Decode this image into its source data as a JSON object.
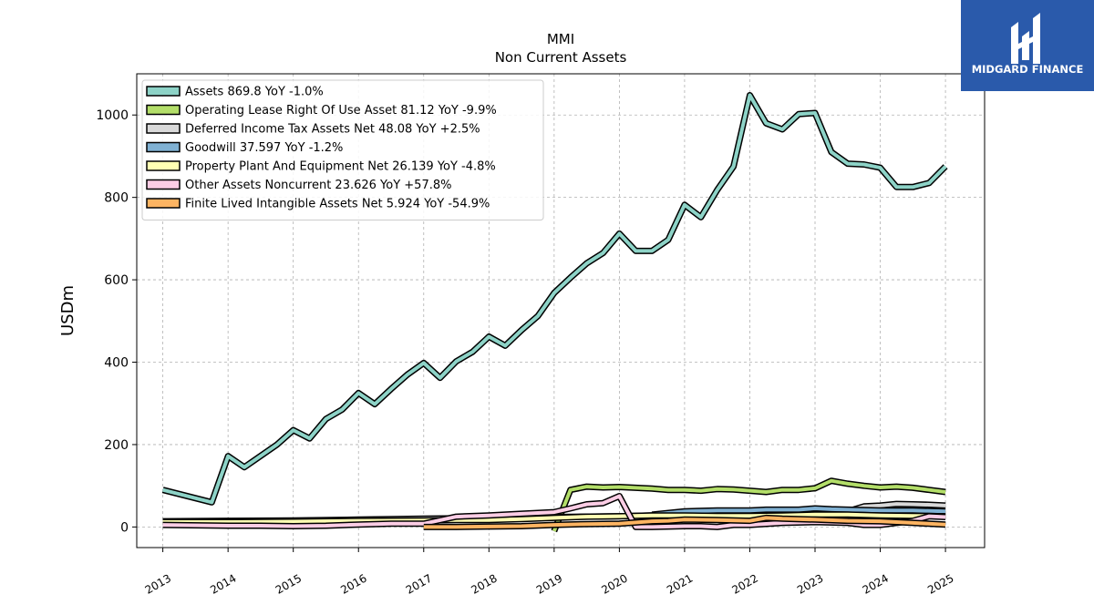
{
  "brand": {
    "name": "MIDGARD FINANCE",
    "bg_color": "#2a5aab"
  },
  "chart_data": {
    "type": "line",
    "title": "MMI",
    "subtitle": "Non Current  Assets",
    "ylabel": "USDm",
    "xlabel": "",
    "xlim": [
      2012.6,
      2025.6
    ],
    "ylim": [
      -50,
      1100
    ],
    "yticks": [
      0,
      200,
      400,
      600,
      800,
      1000
    ],
    "xticks": [
      "2013",
      "2014",
      "2015",
      "2016",
      "2017",
      "2018",
      "2019",
      "2020",
      "2021",
      "2022",
      "2023",
      "2024",
      "2025"
    ],
    "grid": true,
    "legend_position": "top-left",
    "series": [
      {
        "name": "Assets",
        "legend_label": "Assets  869.8 YoY -1.0%",
        "color": "#8dd3c7",
        "x": [
          2013.0,
          2013.75,
          2014.0,
          2014.25,
          2014.75,
          2015.0,
          2015.25,
          2015.5,
          2015.75,
          2016.0,
          2016.25,
          2016.5,
          2016.75,
          2017.0,
          2017.25,
          2017.5,
          2017.75,
          2018.0,
          2018.25,
          2018.5,
          2018.75,
          2019.0,
          2019.25,
          2019.5,
          2019.75,
          2020.0,
          2020.25,
          2020.5,
          2020.75,
          2021.0,
          2021.25,
          2021.5,
          2021.75,
          2022.0,
          2022.25,
          2022.5,
          2022.75,
          2023.0,
          2023.25,
          2023.5,
          2023.75,
          2024.0,
          2024.25,
          2024.5,
          2024.75,
          2025.0
        ],
        "y": [
          90,
          60,
          172,
          145,
          200,
          235,
          215,
          262,
          285,
          325,
          298,
          335,
          370,
          398,
          362,
          402,
          425,
          462,
          440,
          478,
          512,
          568,
          605,
          640,
          665,
          712,
          670,
          670,
          697,
          782,
          752,
          818,
          875,
          1048,
          980,
          965,
          1002,
          1005,
          910,
          882,
          880,
          872,
          825,
          825,
          835,
          875
        ]
      },
      {
        "name": "Operating Lease Right Of Use Asset",
        "legend_label": "Operating Lease Right Of Use Asset  81.12 YoY -9.9%",
        "color": "#b3de69",
        "x": [
          2019.0,
          2019.25,
          2019.5,
          2019.75,
          2020.0,
          2020.25,
          2020.5,
          2020.75,
          2021.0,
          2021.25,
          2021.5,
          2021.75,
          2022.0,
          2022.25,
          2022.5,
          2022.75,
          2023.0,
          2023.25,
          2023.5,
          2023.75,
          2024.0,
          2024.25,
          2024.5,
          2024.75,
          2025.0
        ],
        "y": [
          -10,
          90,
          98,
          96,
          97,
          95,
          93,
          90,
          90,
          88,
          92,
          91,
          88,
          85,
          90,
          90,
          94,
          112,
          105,
          100,
          96,
          98,
          95,
          90,
          85
        ]
      },
      {
        "name": "Deferred Income Tax Assets Net",
        "legend_label": "Deferred Income Tax Assets Net  48.08 YoY +2.5%",
        "color": "#d9d9d9",
        "x": [
          2013.0,
          2014.0,
          2015.0,
          2016.0,
          2017.0,
          2018.0,
          2019.0,
          2020.0,
          2021.0,
          2022.0,
          2022.5,
          2023.0,
          2023.5,
          2023.75,
          2024.0,
          2024.25,
          2024.5,
          2024.75,
          2025.0
        ],
        "y": [
          14,
          15,
          16,
          18,
          20,
          22,
          24,
          26,
          30,
          32,
          33,
          35,
          38,
          50,
          52,
          56,
          55,
          54,
          52
        ]
      },
      {
        "name": "Goodwill",
        "legend_label": "Goodwill  37.597 YoY -1.2%",
        "color": "#80b1d3",
        "x": [
          2020.5,
          2021.0,
          2021.5,
          2022.0,
          2022.25,
          2022.5,
          2022.75,
          2023.0,
          2023.25,
          2023.5,
          2024.0,
          2024.5,
          2025.0
        ],
        "y": [
          30,
          38,
          40,
          40,
          42,
          42,
          42,
          45,
          43,
          42,
          40,
          40,
          38
        ]
      },
      {
        "name": "Property Plant And Equipment Net",
        "legend_label": "Property Plant And Equipment Net  26.139 YoY -4.8%",
        "color": "#ffffb3",
        "x": [
          2013.0,
          2014.0,
          2015.0,
          2016.0,
          2017.0,
          2017.5,
          2018.0,
          2018.5,
          2019.0,
          2019.5,
          2020.0,
          2020.5,
          2021.0,
          2021.5,
          2022.0,
          2022.5,
          2023.0,
          2023.5,
          2024.0,
          2024.5,
          2025.0
        ],
        "y": [
          12,
          12,
          13,
          15,
          16,
          17,
          17,
          19,
          22,
          25,
          26,
          28,
          28,
          27,
          27,
          28,
          30,
          30,
          28,
          27,
          26
        ]
      },
      {
        "name": "Other Assets Noncurrent",
        "legend_label": "Other Assets Noncurrent  23.626 YoY +57.8%",
        "color": "#fccde5",
        "x": [
          2013.0,
          2014.0,
          2014.5,
          2015.0,
          2015.5,
          2016.0,
          2016.5,
          2017.0,
          2017.5,
          2018.0,
          2018.5,
          2019.0,
          2019.25,
          2019.5,
          2019.75,
          2020.0,
          2020.25,
          2020.5,
          2021.0,
          2021.25,
          2021.5,
          2021.75,
          2022.0,
          2022.5,
          2023.0,
          2023.5,
          2023.75,
          2024.0,
          2024.25,
          2024.5,
          2024.75,
          2025.0
        ],
        "y": [
          5,
          3,
          3,
          2,
          3,
          6,
          8,
          8,
          25,
          28,
          32,
          36,
          45,
          55,
          58,
          75,
          0,
          0,
          2,
          2,
          0,
          5,
          5,
          10,
          12,
          10,
          5,
          5,
          10,
          15,
          26,
          24
        ]
      },
      {
        "name": "Finite Lived Intangible Assets Net",
        "legend_label": "Finite Lived Intangible Assets Net  5.924 YoY -54.9%",
        "color": "#fdb462",
        "x": [
          2017.0,
          2017.5,
          2018.0,
          2018.5,
          2019.0,
          2019.5,
          2020.0,
          2020.5,
          2020.75,
          2021.0,
          2021.5,
          2022.0,
          2022.25,
          2022.5,
          2023.0,
          2023.5,
          2024.0,
          2024.5,
          2025.0
        ],
        "y": [
          0,
          0,
          1,
          2,
          5,
          7,
          8,
          14,
          15,
          18,
          17,
          15,
          22,
          20,
          18,
          15,
          14,
          10,
          6
        ]
      }
    ]
  }
}
